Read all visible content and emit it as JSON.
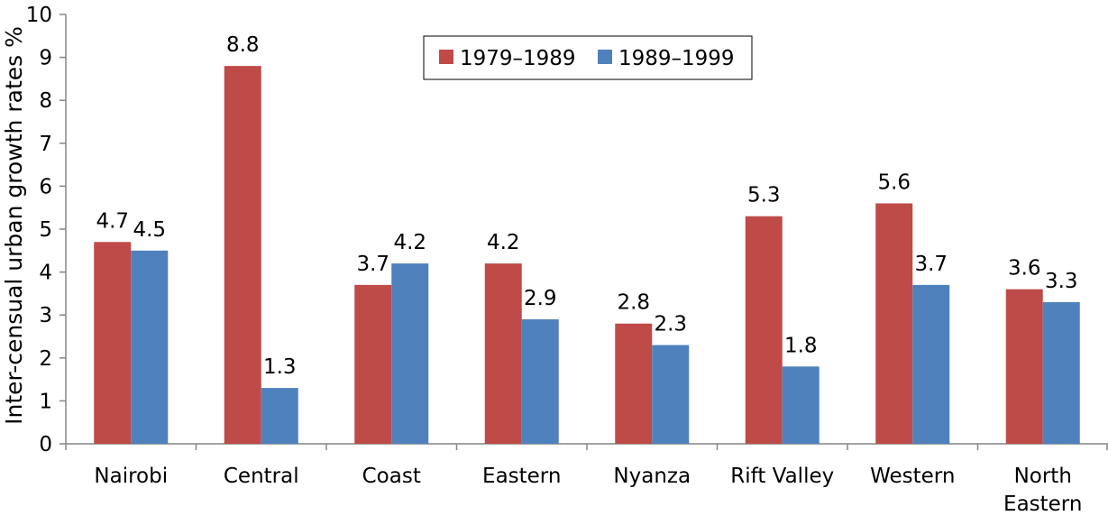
{
  "chart_data": {
    "type": "bar",
    "title": "",
    "xlabel": "",
    "ylabel": "Inter-censual urban growth rates %",
    "ylim": [
      0,
      10
    ],
    "yticks": [
      "0",
      "1",
      "2",
      "3",
      "4",
      "5",
      "6",
      "7",
      "8",
      "9",
      "10"
    ],
    "grid": false,
    "legend_position": "top-center",
    "categories": [
      [
        "Nairobi"
      ],
      [
        "Central"
      ],
      [
        "Coast"
      ],
      [
        "Eastern"
      ],
      [
        "Nyanza"
      ],
      [
        "Rift Valley"
      ],
      [
        "Western"
      ],
      [
        "North",
        "Eastern"
      ]
    ],
    "series": [
      {
        "name": "1979–1989",
        "color": "#BE4B48",
        "values": [
          4.7,
          8.8,
          3.7,
          4.2,
          2.8,
          5.3,
          5.6,
          3.6
        ],
        "labels": [
          "4.7",
          "8.8",
          "3.7",
          "4.2",
          "2.8",
          "5.3",
          "5.6",
          "3.6"
        ]
      },
      {
        "name": "1989–1999",
        "color": "#4F81BD",
        "values": [
          4.5,
          1.3,
          4.2,
          2.9,
          2.3,
          1.8,
          3.7,
          3.3
        ],
        "labels": [
          "4.5",
          "1.3",
          "4.2",
          "2.9",
          "2.3",
          "1.8",
          "3.7",
          "3.3"
        ]
      }
    ]
  }
}
